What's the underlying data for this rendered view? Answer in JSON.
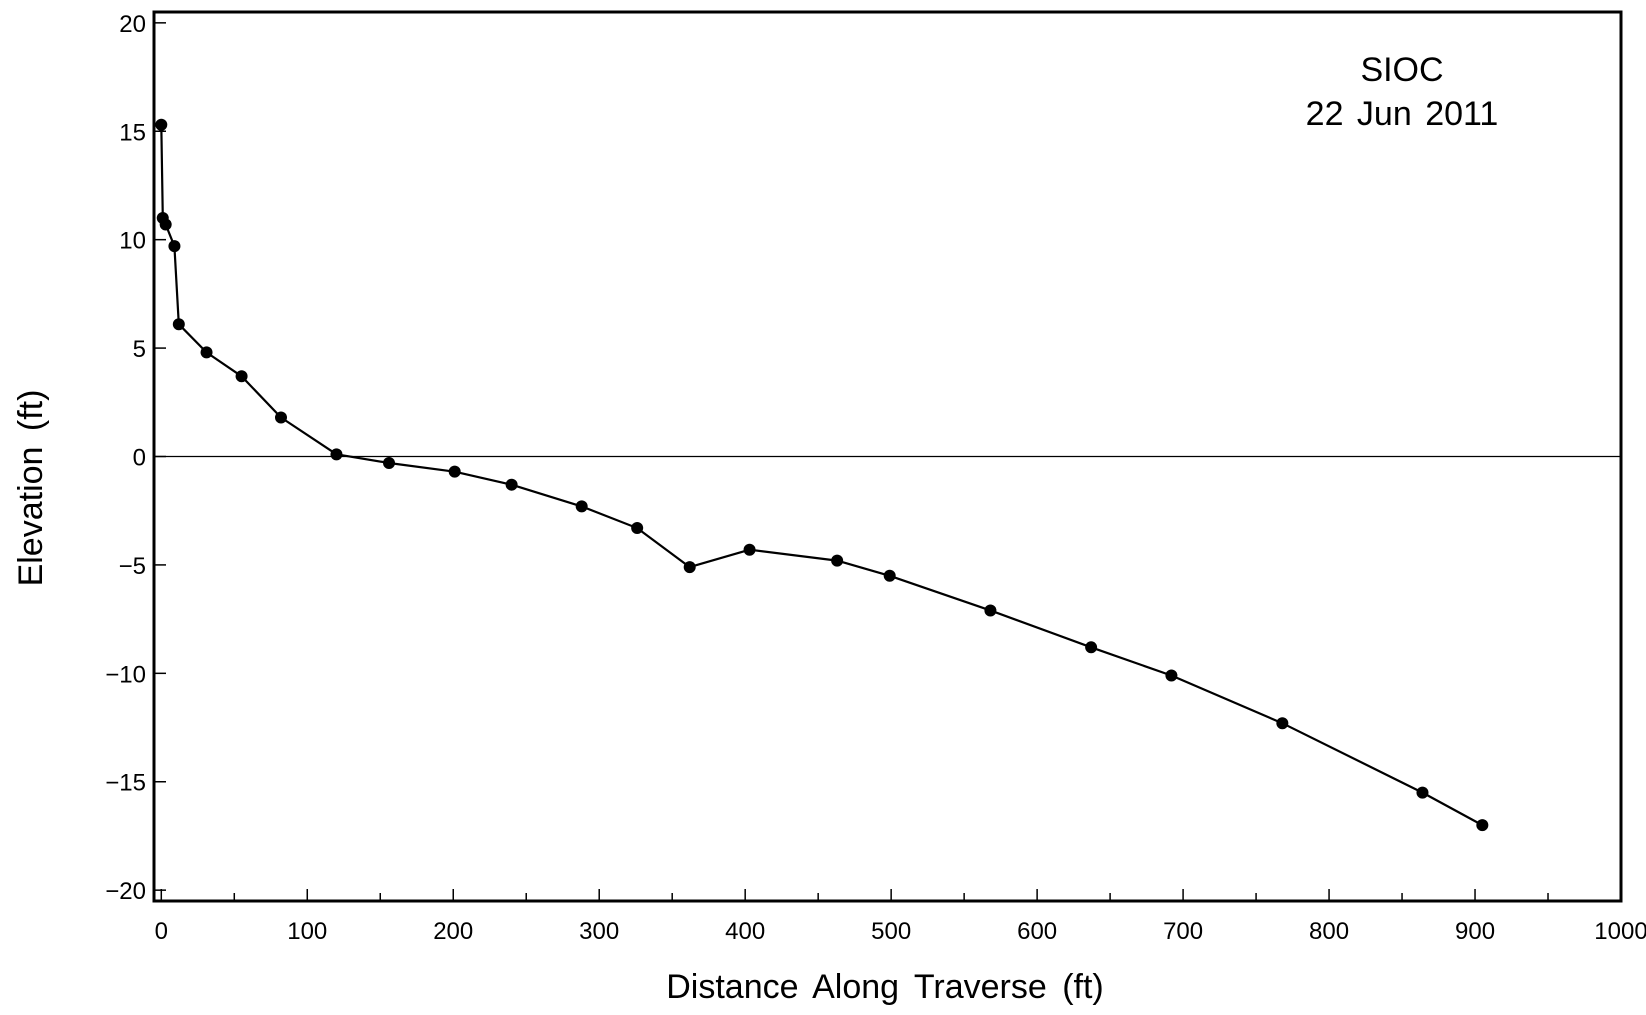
{
  "chart_data": {
    "type": "line",
    "title": "",
    "xlabel": "Distance  Along  Traverse  (ft)",
    "ylabel": "Elevation  (ft)",
    "xlim": [
      -5,
      1000
    ],
    "ylim": [
      -20.5,
      20.5
    ],
    "x_ticks": [
      0,
      100,
      200,
      300,
      400,
      500,
      600,
      700,
      800,
      900,
      1000
    ],
    "x_tick_labels": [
      "0",
      "100",
      "200",
      "300",
      "400",
      "500",
      "600",
      "700",
      "800",
      "900",
      "1000"
    ],
    "y_ticks": [
      20,
      15,
      10,
      5,
      0,
      -5,
      -10,
      -15,
      -20
    ],
    "y_tick_labels": [
      "20",
      "15",
      "10",
      "5",
      "0",
      "−5",
      "−10",
      "−15",
      "−20"
    ],
    "grid": false,
    "reference_line_y": 0,
    "annotations": [
      "SIOC",
      "22  Jun  2011"
    ],
    "series": [
      {
        "color": "#000000",
        "marker": "circle",
        "x": [
          0,
          1,
          3,
          9,
          12,
          31,
          55,
          82,
          120,
          156,
          201,
          240,
          288,
          326,
          362,
          403,
          463,
          499,
          568,
          637,
          692,
          768,
          864,
          905
        ],
        "y": [
          15.3,
          11.0,
          10.7,
          9.7,
          6.1,
          4.8,
          3.7,
          1.8,
          0.1,
          -0.3,
          -0.7,
          -1.3,
          -2.3,
          -3.3,
          -5.1,
          -4.3,
          -4.8,
          -5.5,
          -7.1,
          -8.8,
          -10.1,
          -12.3,
          -15.5,
          -17.0
        ]
      }
    ]
  }
}
